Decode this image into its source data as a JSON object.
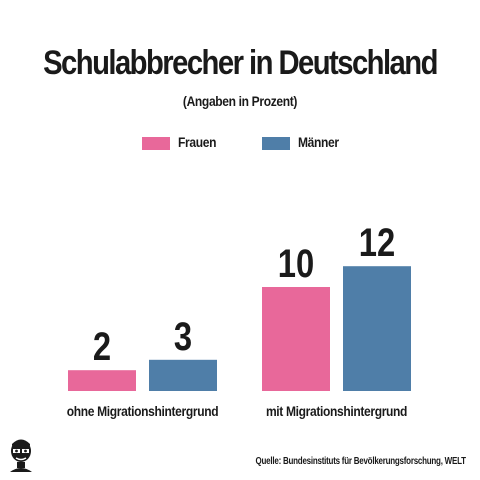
{
  "chart_data": {
    "type": "bar",
    "title": "Schulabbrecher in Deutschland",
    "subtitle": "(Angaben in Prozent)",
    "categories": [
      "ohne Migrationshintergrund",
      "mit Migrationshintergrund"
    ],
    "series": [
      {
        "name": "Frauen",
        "values": [
          2,
          10
        ],
        "color": "#e8689a"
      },
      {
        "name": "Männer",
        "values": [
          3,
          12
        ],
        "color": "#4f7ea8"
      }
    ],
    "legend_position": "top-center",
    "grid": false
  },
  "source": "Quelle:  Bundesinstituts für Bevölkerungsforschung, WELT",
  "icons": {
    "logo": "face-logo-icon"
  }
}
